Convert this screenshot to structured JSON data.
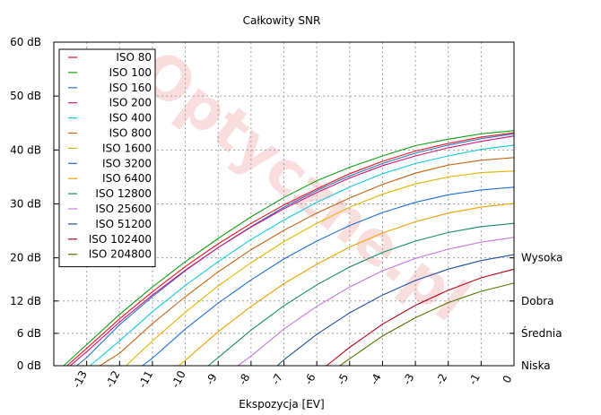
{
  "chart_data": {
    "type": "line",
    "title": "Całkowity SNR",
    "xlabel": "Ekspozycja [EV]",
    "ylabel": "",
    "xlim": [
      -14,
      0
    ],
    "ylim": [
      0,
      60
    ],
    "x_ticks": [
      -13,
      -12,
      -11,
      -10,
      -9,
      -8,
      -7,
      -6,
      -5,
      -4,
      -3,
      -2,
      -1,
      0
    ],
    "x_tick_labels": [
      "-13",
      "-12",
      "-11",
      "-10",
      "-9",
      "-8",
      "-7",
      "-6",
      "-5",
      "-4",
      "-3",
      "-2",
      "-1",
      "0"
    ],
    "y_ticks": [
      0,
      6,
      12,
      20,
      30,
      40,
      50,
      60
    ],
    "y_tick_labels": [
      "0 dB",
      "6 dB",
      "12 dB",
      "20 dB",
      "30 dB",
      "40 dB",
      "50 dB",
      "60 dB"
    ],
    "right_labels": [
      {
        "y": 20,
        "text": "Wysoka"
      },
      {
        "y": 12,
        "text": "Dobra"
      },
      {
        "y": 6,
        "text": "Średnia"
      },
      {
        "y": 0,
        "text": "Niska"
      }
    ],
    "grid": true,
    "legend_position": "top-left",
    "watermark": "Optyczne.pl",
    "series": [
      {
        "name": "ISO 80",
        "color": "#e8141e",
        "x": [
          -13.6,
          -13.0,
          -12.0,
          -11.0,
          -10.0,
          -9.0,
          -8.0,
          -7.0,
          -6.0,
          -5.0,
          -4.0,
          -3.0,
          -2.0,
          -1.0,
          0.0
        ],
        "y": [
          0.0,
          3.2,
          8.7,
          13.7,
          18.4,
          22.6,
          26.4,
          29.8,
          32.8,
          35.6,
          37.9,
          39.8,
          41.2,
          42.4,
          43.2
        ]
      },
      {
        "name": "ISO 100",
        "color": "#10a010",
        "x": [
          -13.7,
          -13.0,
          -12.0,
          -11.0,
          -10.0,
          -9.0,
          -8.0,
          -7.0,
          -6.0,
          -5.0,
          -4.0,
          -3.0,
          -2.0,
          -1.0,
          0.0
        ],
        "y": [
          0.0,
          3.9,
          9.5,
          14.6,
          19.3,
          23.6,
          27.6,
          31.2,
          34.3,
          36.8,
          38.9,
          40.8,
          42.0,
          43.0,
          43.6
        ]
      },
      {
        "name": "ISO 160",
        "color": "#2474c8",
        "x": [
          -13.3,
          -13.0,
          -12.0,
          -11.0,
          -10.0,
          -9.0,
          -8.0,
          -7.0,
          -6.0,
          -5.0,
          -4.0,
          -3.0,
          -2.0,
          -1.0,
          0.0
        ],
        "y": [
          0.0,
          1.5,
          7.6,
          12.8,
          17.6,
          21.9,
          25.8,
          29.4,
          32.5,
          35.2,
          37.5,
          39.4,
          40.9,
          42.1,
          43.0
        ]
      },
      {
        "name": "ISO 200",
        "color": "#d01478",
        "x": [
          -13.5,
          -13.0,
          -12.0,
          -11.0,
          -10.0,
          -9.0,
          -8.0,
          -7.0,
          -6.0,
          -5.0,
          -4.0,
          -3.0,
          -2.0,
          -1.0,
          0.0
        ],
        "y": [
          0.0,
          2.6,
          8.1,
          13.1,
          17.7,
          21.9,
          25.7,
          29.1,
          32.1,
          34.8,
          37.1,
          38.9,
          40.4,
          41.6,
          42.6
        ]
      },
      {
        "name": "ISO 400",
        "color": "#14c8dc",
        "x": [
          -12.9,
          -12.0,
          -11.0,
          -10.0,
          -9.0,
          -8.0,
          -7.0,
          -6.0,
          -5.0,
          -4.0,
          -3.0,
          -2.0,
          -1.0,
          0.0
        ],
        "y": [
          0.0,
          4.6,
          10.0,
          14.9,
          19.3,
          23.4,
          27.0,
          30.3,
          33.1,
          35.6,
          37.5,
          38.9,
          40.1,
          40.9
        ]
      },
      {
        "name": "ISO 800",
        "color": "#c86414",
        "x": [
          -12.6,
          -12.0,
          -11.0,
          -10.0,
          -9.0,
          -8.0,
          -7.0,
          -6.0,
          -5.0,
          -4.0,
          -3.0,
          -2.0,
          -1.0,
          0.0
        ],
        "y": [
          0.0,
          2.3,
          7.8,
          12.8,
          17.4,
          21.5,
          25.1,
          28.3,
          31.1,
          33.6,
          35.7,
          37.2,
          38.1,
          38.6
        ]
      },
      {
        "name": "ISO 1600",
        "color": "#e6b400",
        "x": [
          -11.8,
          -11.0,
          -10.0,
          -9.0,
          -8.0,
          -7.0,
          -6.0,
          -5.0,
          -4.0,
          -3.0,
          -2.0,
          -1.0,
          0.0
        ],
        "y": [
          0.0,
          4.6,
          9.9,
          14.8,
          19.1,
          23.0,
          26.4,
          29.4,
          31.8,
          33.7,
          35.0,
          35.8,
          36.1
        ]
      },
      {
        "name": "ISO 3200",
        "color": "#1e6edc",
        "x": [
          -11.3,
          -11.0,
          -10.0,
          -9.0,
          -8.0,
          -7.0,
          -6.0,
          -5.0,
          -4.0,
          -3.0,
          -2.0,
          -1.0,
          0.0
        ],
        "y": [
          0.0,
          1.4,
          6.8,
          11.6,
          15.9,
          19.8,
          23.1,
          26.0,
          28.4,
          30.3,
          31.7,
          32.6,
          33.1
        ]
      },
      {
        "name": "ISO 6400",
        "color": "#f0a000",
        "x": [
          -10.2,
          -10.0,
          -9.0,
          -8.0,
          -7.0,
          -6.0,
          -5.0,
          -4.0,
          -3.0,
          -2.0,
          -1.0,
          0.0
        ],
        "y": [
          0.0,
          1.0,
          6.3,
          11.0,
          15.2,
          18.8,
          22.0,
          24.6,
          26.7,
          28.3,
          29.4,
          30.1
        ]
      },
      {
        "name": "ISO 12800",
        "color": "#148c64",
        "x": [
          -9.3,
          -9.0,
          -8.0,
          -7.0,
          -6.0,
          -5.0,
          -4.0,
          -3.0,
          -2.0,
          -1.0,
          0.0
        ],
        "y": [
          0.0,
          1.5,
          6.6,
          11.1,
          15.0,
          18.3,
          21.0,
          23.1,
          24.7,
          25.8,
          26.4
        ]
      },
      {
        "name": "ISO 25600",
        "color": "#c878dc",
        "x": [
          -8.4,
          -8.0,
          -7.0,
          -6.0,
          -5.0,
          -4.0,
          -3.0,
          -2.0,
          -1.0,
          0.0
        ],
        "y": [
          0.0,
          1.8,
          6.8,
          11.0,
          14.6,
          17.6,
          19.9,
          21.6,
          22.9,
          23.8
        ]
      },
      {
        "name": "ISO 51200",
        "color": "#1e50a0",
        "x": [
          -7.2,
          -7.0,
          -6.0,
          -5.0,
          -4.0,
          -3.0,
          -2.0,
          -1.0,
          0.0
        ],
        "y": [
          0.0,
          1.1,
          5.8,
          9.8,
          13.1,
          15.8,
          17.9,
          19.5,
          20.6
        ]
      },
      {
        "name": "ISO 102400",
        "color": "#b40014",
        "x": [
          -5.7,
          -5.0,
          -4.0,
          -3.0,
          -2.0,
          -1.0,
          0.0
        ],
        "y": [
          0.0,
          3.4,
          7.7,
          11.2,
          14.0,
          16.3,
          17.9
        ]
      },
      {
        "name": "ISO 204800",
        "color": "#507800",
        "x": [
          -5.3,
          -5.0,
          -4.0,
          -3.0,
          -2.0,
          -1.0,
          0.0
        ],
        "y": [
          0.0,
          1.3,
          5.5,
          8.9,
          11.7,
          13.8,
          15.3
        ]
      }
    ]
  }
}
